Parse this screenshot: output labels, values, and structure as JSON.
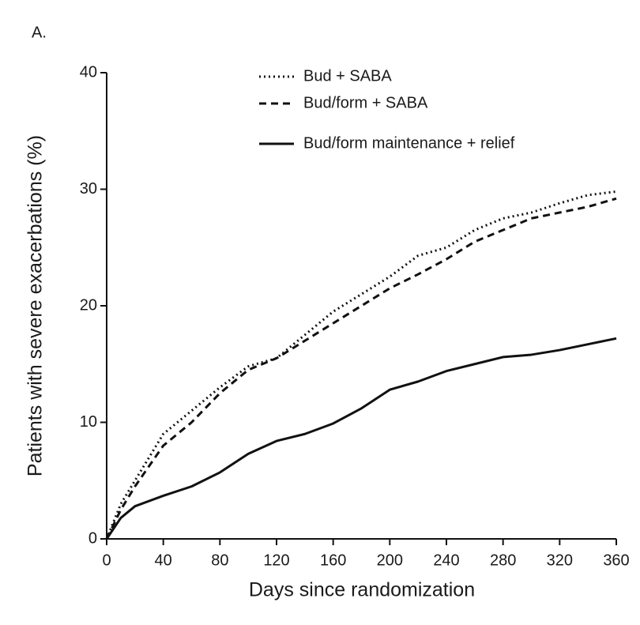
{
  "chart_data": {
    "type": "line",
    "panel_label": "A.",
    "xlabel": "Days since randomization",
    "ylabel": "Patients with severe exacerbations (%)",
    "x": [
      0,
      10,
      20,
      40,
      60,
      80,
      100,
      120,
      140,
      160,
      180,
      200,
      220,
      240,
      260,
      280,
      300,
      320,
      340,
      360
    ],
    "series": [
      {
        "name": "Bud + SABA",
        "color": "#111111",
        "style": "dotted",
        "values": [
          0,
          3,
          5,
          9,
          11,
          13,
          14.8,
          15.5,
          17.5,
          19.5,
          21,
          22.5,
          24.3,
          25,
          26.5,
          27.5,
          28,
          28.8,
          29.5,
          29.8
        ]
      },
      {
        "name": "Bud/form + SABA",
        "color": "#111111",
        "style": "dashed",
        "values": [
          0,
          2.5,
          4.5,
          8,
          10,
          12.5,
          14.5,
          15.5,
          17,
          18.5,
          20,
          21.5,
          22.7,
          24,
          25.5,
          26.5,
          27.5,
          28,
          28.5,
          29.2
        ]
      },
      {
        "name": "Bud/form maintenance + relief",
        "color": "#111111",
        "style": "solid",
        "values": [
          0,
          1.8,
          2.8,
          3.7,
          4.5,
          5.7,
          7.3,
          8.4,
          9,
          9.9,
          11.2,
          12.8,
          13.5,
          14.4,
          15,
          15.6,
          15.8,
          16.2,
          16.7,
          17.2
        ]
      }
    ],
    "xlim": [
      0,
      360
    ],
    "xticks": [
      0,
      40,
      80,
      120,
      160,
      200,
      240,
      280,
      320,
      360
    ],
    "ylim": [
      0,
      40
    ],
    "yticks": [
      0,
      10,
      20,
      30,
      40
    ],
    "grid": false,
    "legend": "top-right"
  }
}
